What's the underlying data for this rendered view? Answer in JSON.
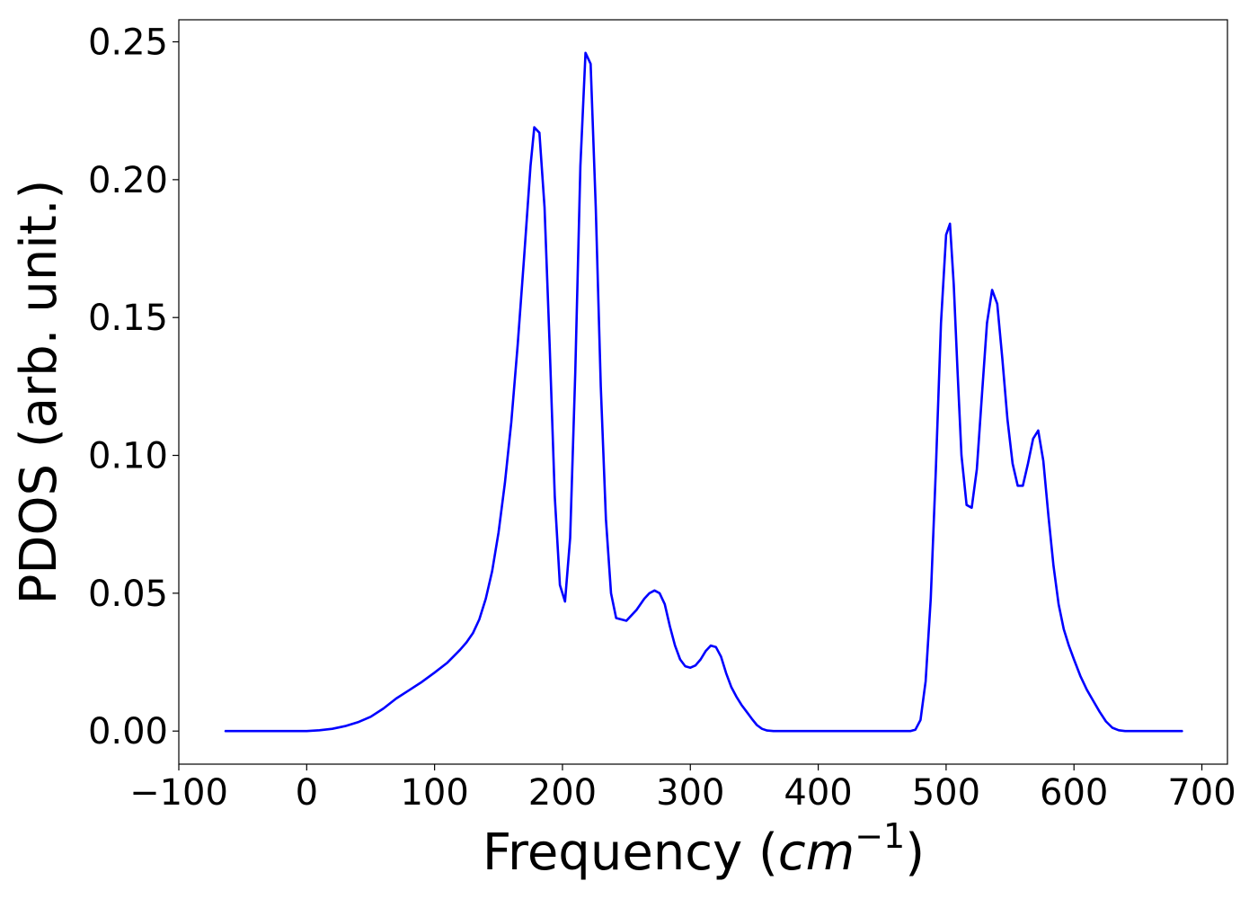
{
  "chart_data": {
    "type": "line",
    "xlabel": "Frequency",
    "xlabel_unit": "cm",
    "xlabel_unit_exponent": "−1",
    "ylabel": "PDOS (arb. unit.)",
    "xlim": [
      -100,
      720
    ],
    "ylim": [
      -0.012,
      0.258
    ],
    "x_ticks": [
      -100,
      0,
      100,
      200,
      300,
      400,
      500,
      600,
      700
    ],
    "x_tick_labels": [
      "−100",
      "0",
      "100",
      "200",
      "300",
      "400",
      "500",
      "600",
      "700"
    ],
    "y_ticks": [
      0.0,
      0.05,
      0.1,
      0.15,
      0.2,
      0.25
    ],
    "y_tick_labels": [
      "0.00",
      "0.05",
      "0.10",
      "0.15",
      "0.20",
      "0.25"
    ],
    "grid": false,
    "line_color": "#0000ff",
    "series": [
      {
        "x": [
          -64,
          -40,
          -20,
          0,
          10,
          20,
          30,
          40,
          50,
          60,
          70,
          80,
          90,
          100,
          110,
          120,
          125,
          130,
          135,
          140,
          145,
          150,
          155,
          160,
          165,
          170,
          175,
          178,
          182,
          186,
          190,
          194,
          198,
          202,
          206,
          210,
          214,
          218,
          222,
          226,
          230,
          234,
          238,
          242,
          250,
          258,
          264,
          268,
          272,
          276,
          280,
          284,
          288,
          292,
          296,
          300,
          304,
          308,
          312,
          316,
          320,
          324,
          328,
          332,
          336,
          340,
          344,
          348,
          352,
          356,
          360,
          365,
          370,
          400,
          450,
          472,
          476,
          480,
          484,
          488,
          492,
          496,
          500,
          503,
          506,
          509,
          512,
          516,
          520,
          524,
          528,
          532,
          536,
          540,
          544,
          548,
          552,
          556,
          560,
          564,
          568,
          572,
          576,
          580,
          584,
          588,
          592,
          596,
          600,
          605,
          610,
          615,
          620,
          625,
          630,
          635,
          640,
          660,
          685
        ],
        "y": [
          0.0,
          0.0,
          0.0,
          0.0,
          0.0003,
          0.0008,
          0.0018,
          0.0032,
          0.0052,
          0.0082,
          0.0118,
          0.0148,
          0.0178,
          0.0212,
          0.0248,
          0.0295,
          0.0322,
          0.0355,
          0.0405,
          0.048,
          0.058,
          0.072,
          0.09,
          0.112,
          0.14,
          0.172,
          0.205,
          0.219,
          0.217,
          0.19,
          0.14,
          0.085,
          0.053,
          0.047,
          0.07,
          0.13,
          0.205,
          0.246,
          0.242,
          0.19,
          0.125,
          0.077,
          0.05,
          0.041,
          0.04,
          0.044,
          0.048,
          0.05,
          0.051,
          0.05,
          0.046,
          0.038,
          0.031,
          0.026,
          0.0235,
          0.023,
          0.0238,
          0.026,
          0.029,
          0.031,
          0.0305,
          0.027,
          0.021,
          0.016,
          0.0125,
          0.0095,
          0.007,
          0.0045,
          0.0022,
          0.0008,
          0.0002,
          0.0,
          0.0,
          0.0,
          0.0,
          0.0,
          0.0005,
          0.004,
          0.018,
          0.048,
          0.095,
          0.148,
          0.18,
          0.184,
          0.162,
          0.13,
          0.1,
          0.082,
          0.081,
          0.095,
          0.122,
          0.148,
          0.16,
          0.155,
          0.135,
          0.113,
          0.097,
          0.089,
          0.089,
          0.097,
          0.106,
          0.109,
          0.098,
          0.078,
          0.06,
          0.046,
          0.037,
          0.031,
          0.026,
          0.02,
          0.015,
          0.011,
          0.007,
          0.0035,
          0.0012,
          0.0003,
          0.0,
          0.0,
          0.0
        ]
      }
    ]
  }
}
